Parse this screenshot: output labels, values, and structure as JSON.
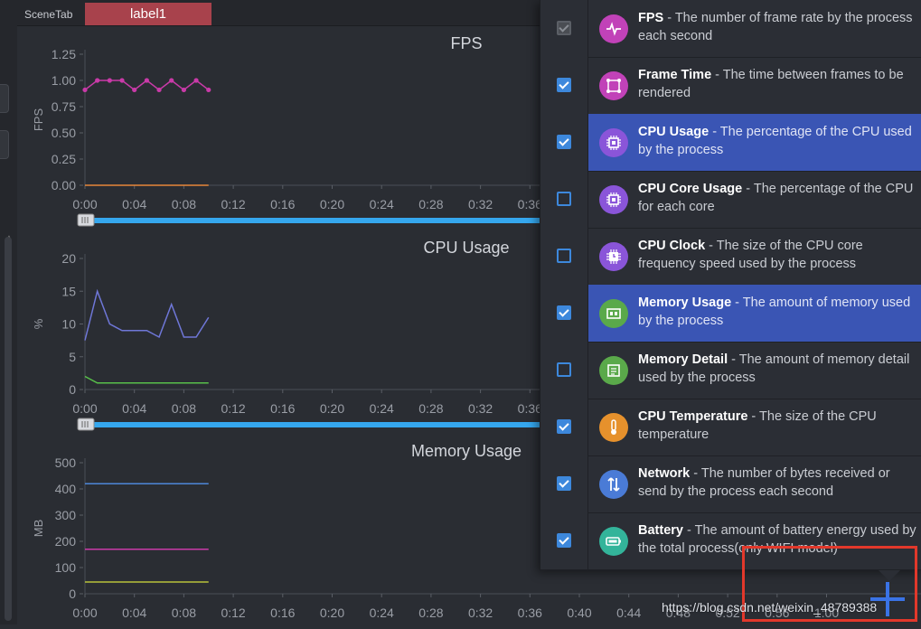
{
  "tabbar": {
    "scene_tab": "SceneTab",
    "label_tab": "label1"
  },
  "colors": {
    "slider_blue": "#35a7ee",
    "selected_row": "#3a55b4",
    "checkbox_blue": "#3d88dc",
    "highlight_red": "#e2382b",
    "fps_line": "#c93aa8",
    "cpu_line": "#6f77d8",
    "cpu_secondary": "#58c04a",
    "fps_secondary": "#e7873b"
  },
  "time_ticks": [
    "0:00",
    "0:04",
    "0:08",
    "0:12",
    "0:16",
    "0:20",
    "0:24",
    "0:28",
    "0:32",
    "0:36",
    "0:40",
    "0:44",
    "0:48",
    "0:52",
    "0:56",
    "1:00"
  ],
  "chart_data": [
    {
      "type": "line",
      "title": "FPS",
      "ylabel": "FPS",
      "ylim": [
        0,
        1.25
      ],
      "yticks": [
        "1.25",
        "1.00",
        "0.75",
        "0.50",
        "0.25",
        "0.00"
      ],
      "series": [
        {
          "color": "#c93aa8",
          "markers": true,
          "x": [
            0,
            1,
            2,
            3,
            4,
            5,
            6,
            7,
            8,
            9,
            10
          ],
          "values": [
            0.91,
            1.0,
            1.0,
            1.0,
            0.91,
            1.0,
            0.91,
            1.0,
            0.91,
            1.0,
            0.91
          ]
        },
        {
          "color": "#e7873b",
          "markers": false,
          "x": [
            0,
            10
          ],
          "values": [
            0.0,
            0.0
          ]
        }
      ]
    },
    {
      "type": "line",
      "title": "CPU Usage",
      "ylabel": "%",
      "ylim": [
        0,
        20
      ],
      "yticks": [
        "20",
        "15",
        "10",
        "5",
        "0"
      ],
      "series": [
        {
          "color": "#6f77d8",
          "markers": false,
          "x": [
            0,
            1,
            2,
            3,
            4,
            5,
            6,
            7,
            8,
            9,
            10
          ],
          "values": [
            7.5,
            15,
            10,
            9,
            9,
            9,
            8,
            13,
            8,
            8,
            11
          ]
        },
        {
          "color": "#58c04a",
          "markers": false,
          "x": [
            0,
            1,
            2,
            3,
            4,
            5,
            6,
            7,
            8,
            9,
            10
          ],
          "values": [
            2,
            1,
            1,
            1,
            1,
            1,
            1,
            1,
            1,
            1,
            1
          ]
        }
      ]
    },
    {
      "type": "line",
      "title": "Memory Usage",
      "ylabel": "MB",
      "ylim": [
        0,
        500
      ],
      "yticks": [
        "500",
        "400",
        "300",
        "200",
        "100",
        "0"
      ],
      "series": [
        {
          "color": "#4d86d8",
          "markers": false,
          "x": [
            0,
            10
          ],
          "values": [
            420,
            420
          ]
        },
        {
          "color": "#c93aa8",
          "markers": false,
          "x": [
            0,
            10
          ],
          "values": [
            170,
            170
          ]
        },
        {
          "color": "#b7c23a",
          "markers": false,
          "x": [
            0,
            10
          ],
          "values": [
            45,
            45
          ]
        }
      ]
    }
  ],
  "metrics": [
    {
      "name": "FPS",
      "desc": " - The number of frame rate by the process each second",
      "checked": true,
      "disabled": true,
      "selected": false,
      "icon": "pulse-icon",
      "icon_color": "#c142b8"
    },
    {
      "name": "Frame Time",
      "desc": " - The time between frames to be rendered",
      "checked": true,
      "disabled": false,
      "selected": false,
      "icon": "nodes-icon",
      "icon_color": "#c142b8"
    },
    {
      "name": "CPU Usage",
      "desc": " - The percentage of the CPU used by the process",
      "checked": true,
      "disabled": false,
      "selected": true,
      "icon": "chip-icon",
      "icon_color": "#8a55d9"
    },
    {
      "name": "CPU Core Usage",
      "desc": " - The percentage of the CPU for each core",
      "checked": false,
      "disabled": false,
      "selected": false,
      "icon": "chip-icon",
      "icon_color": "#8a55d9"
    },
    {
      "name": "CPU Clock",
      "desc": " - The size of the CPU core frequency speed used by the process",
      "checked": false,
      "disabled": false,
      "selected": false,
      "icon": "chip-clock-icon",
      "icon_color": "#8a55d9"
    },
    {
      "name": "Memory Usage",
      "desc": " - The amount of memory used by the process",
      "checked": true,
      "disabled": false,
      "selected": true,
      "icon": "memory-icon",
      "icon_color": "#5aa94a"
    },
    {
      "name": "Memory Detail",
      "desc": " - The amount of memory detail used by the process",
      "checked": false,
      "disabled": false,
      "selected": false,
      "icon": "memory-detail-icon",
      "icon_color": "#5aa94a"
    },
    {
      "name": "CPU Temperature",
      "desc": " - The size of the CPU temperature",
      "checked": true,
      "disabled": false,
      "selected": false,
      "icon": "thermometer-icon",
      "icon_color": "#e6912c"
    },
    {
      "name": "Network",
      "desc": " - The number of bytes received or send by the process each second",
      "checked": true,
      "disabled": false,
      "selected": false,
      "icon": "network-icon",
      "icon_color": "#4a7bd6"
    },
    {
      "name": "Battery",
      "desc": " - The amount of battery energy used by the total process(only WIFI model)",
      "checked": true,
      "disabled": false,
      "selected": false,
      "icon": "battery-icon",
      "icon_color": "#33b49a"
    }
  ],
  "watermark": "https://blog.csdn.net/weixin_48789388"
}
